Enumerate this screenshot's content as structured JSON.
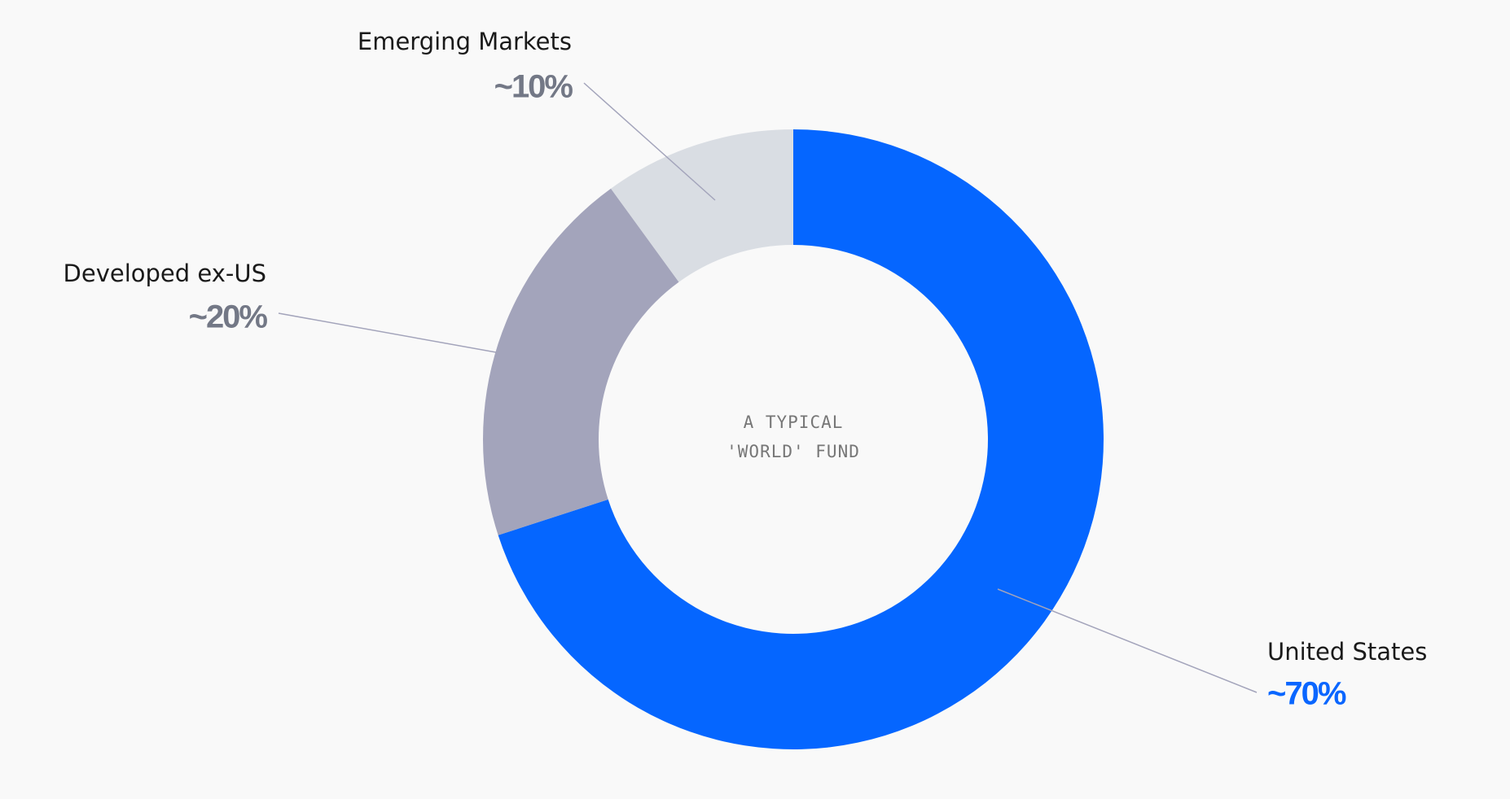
{
  "chart_data": {
    "type": "pie",
    "donut": true,
    "center_label": [
      "A TYPICAL",
      "'WORLD' FUND"
    ],
    "categories": [
      "United States",
      "Developed ex-US",
      "Emerging Markets"
    ],
    "values": [
      70,
      20,
      10
    ],
    "value_labels": [
      "~70%",
      "~20%",
      "~10%"
    ],
    "colors": [
      "#0566ff",
      "#a3a4bb",
      "#d9dde3"
    ],
    "label_colors": [
      "#0a66ff",
      "#737886",
      "#737886"
    ]
  }
}
